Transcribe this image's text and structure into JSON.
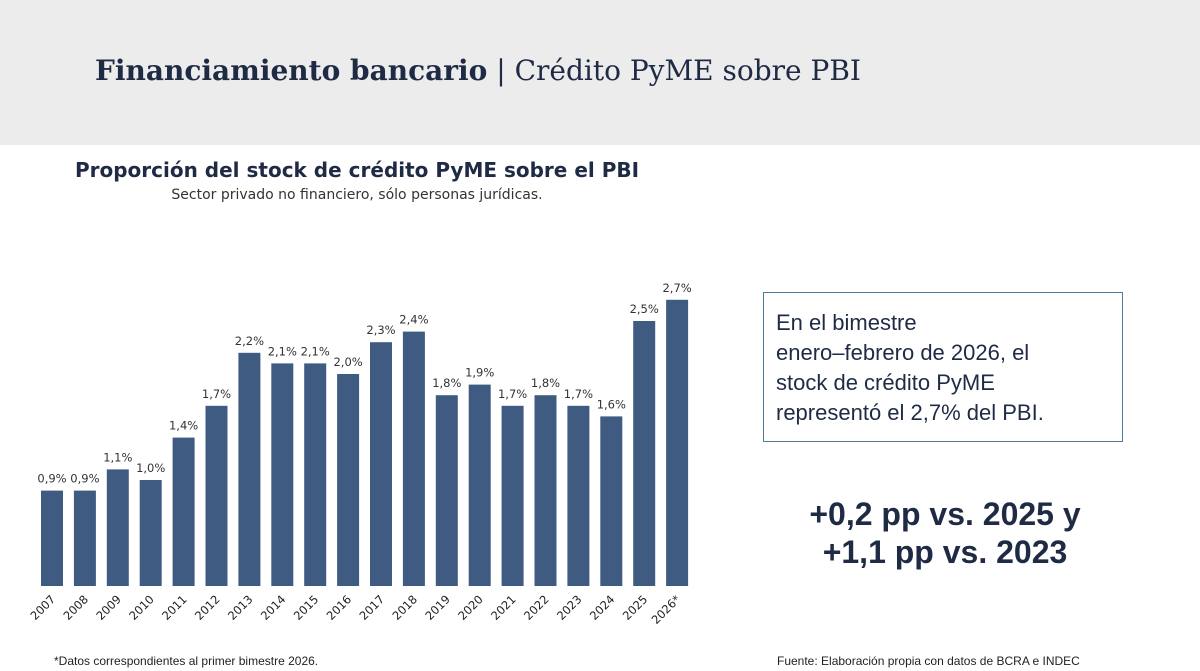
{
  "header": {
    "title_bold": "Financiamiento bancario",
    "separator": "|",
    "title_rest": "Crédito PyME sobre PBI"
  },
  "chart": {
    "title": "Proporción del stock de crédito PyME sobre el PBI",
    "subtitle": "Sector privado no financiero, sólo personas jurídicas."
  },
  "chart_data": {
    "type": "bar",
    "title": "Proporción del stock de crédito PyME sobre el PBI",
    "subtitle": "Sector privado no financiero, sólo personas jurídicas.",
    "categories": [
      "2007",
      "2008",
      "2009",
      "2010",
      "2011",
      "2012",
      "2013",
      "2014",
      "2015",
      "2016",
      "2017",
      "2018",
      "2019",
      "2020",
      "2021",
      "2022",
      "2023",
      "2024",
      "2025",
      "2026*"
    ],
    "values": [
      0.9,
      0.9,
      1.1,
      1.0,
      1.4,
      1.7,
      2.2,
      2.1,
      2.1,
      2.0,
      2.3,
      2.4,
      1.8,
      1.9,
      1.7,
      1.8,
      1.7,
      1.6,
      2.5,
      2.7
    ],
    "data_labels": [
      "0,9%",
      "0,9%",
      "1,1%",
      "1,0%",
      "1,4%",
      "1,7%",
      "2,2%",
      "2,1%",
      "2,1%",
      "2,0%",
      "2,3%",
      "2,4%",
      "1,8%",
      "1,9%",
      "1,7%",
      "1,8%",
      "1,7%",
      "1,6%",
      "2,5%",
      "2,7%"
    ],
    "xlabel": "",
    "ylabel": "",
    "ylim": [
      0,
      3.0
    ],
    "grid": false,
    "bar_color": "#3f5b82"
  },
  "info_box": {
    "line1": "En el bimestre",
    "line2": "enero–febrero de 2026, el",
    "line3": "stock de crédito PyME",
    "line4": "representó el 2,7% del PBI."
  },
  "highlight": {
    "line1": "+0,2 pp vs. 2025 y",
    "line2": "+1,1 pp vs. 2023"
  },
  "footnote": "*Datos correspondientes al primer bimestre 2026.",
  "source": "Fuente: Elaboración propia con datos de BCRA e INDEC"
}
